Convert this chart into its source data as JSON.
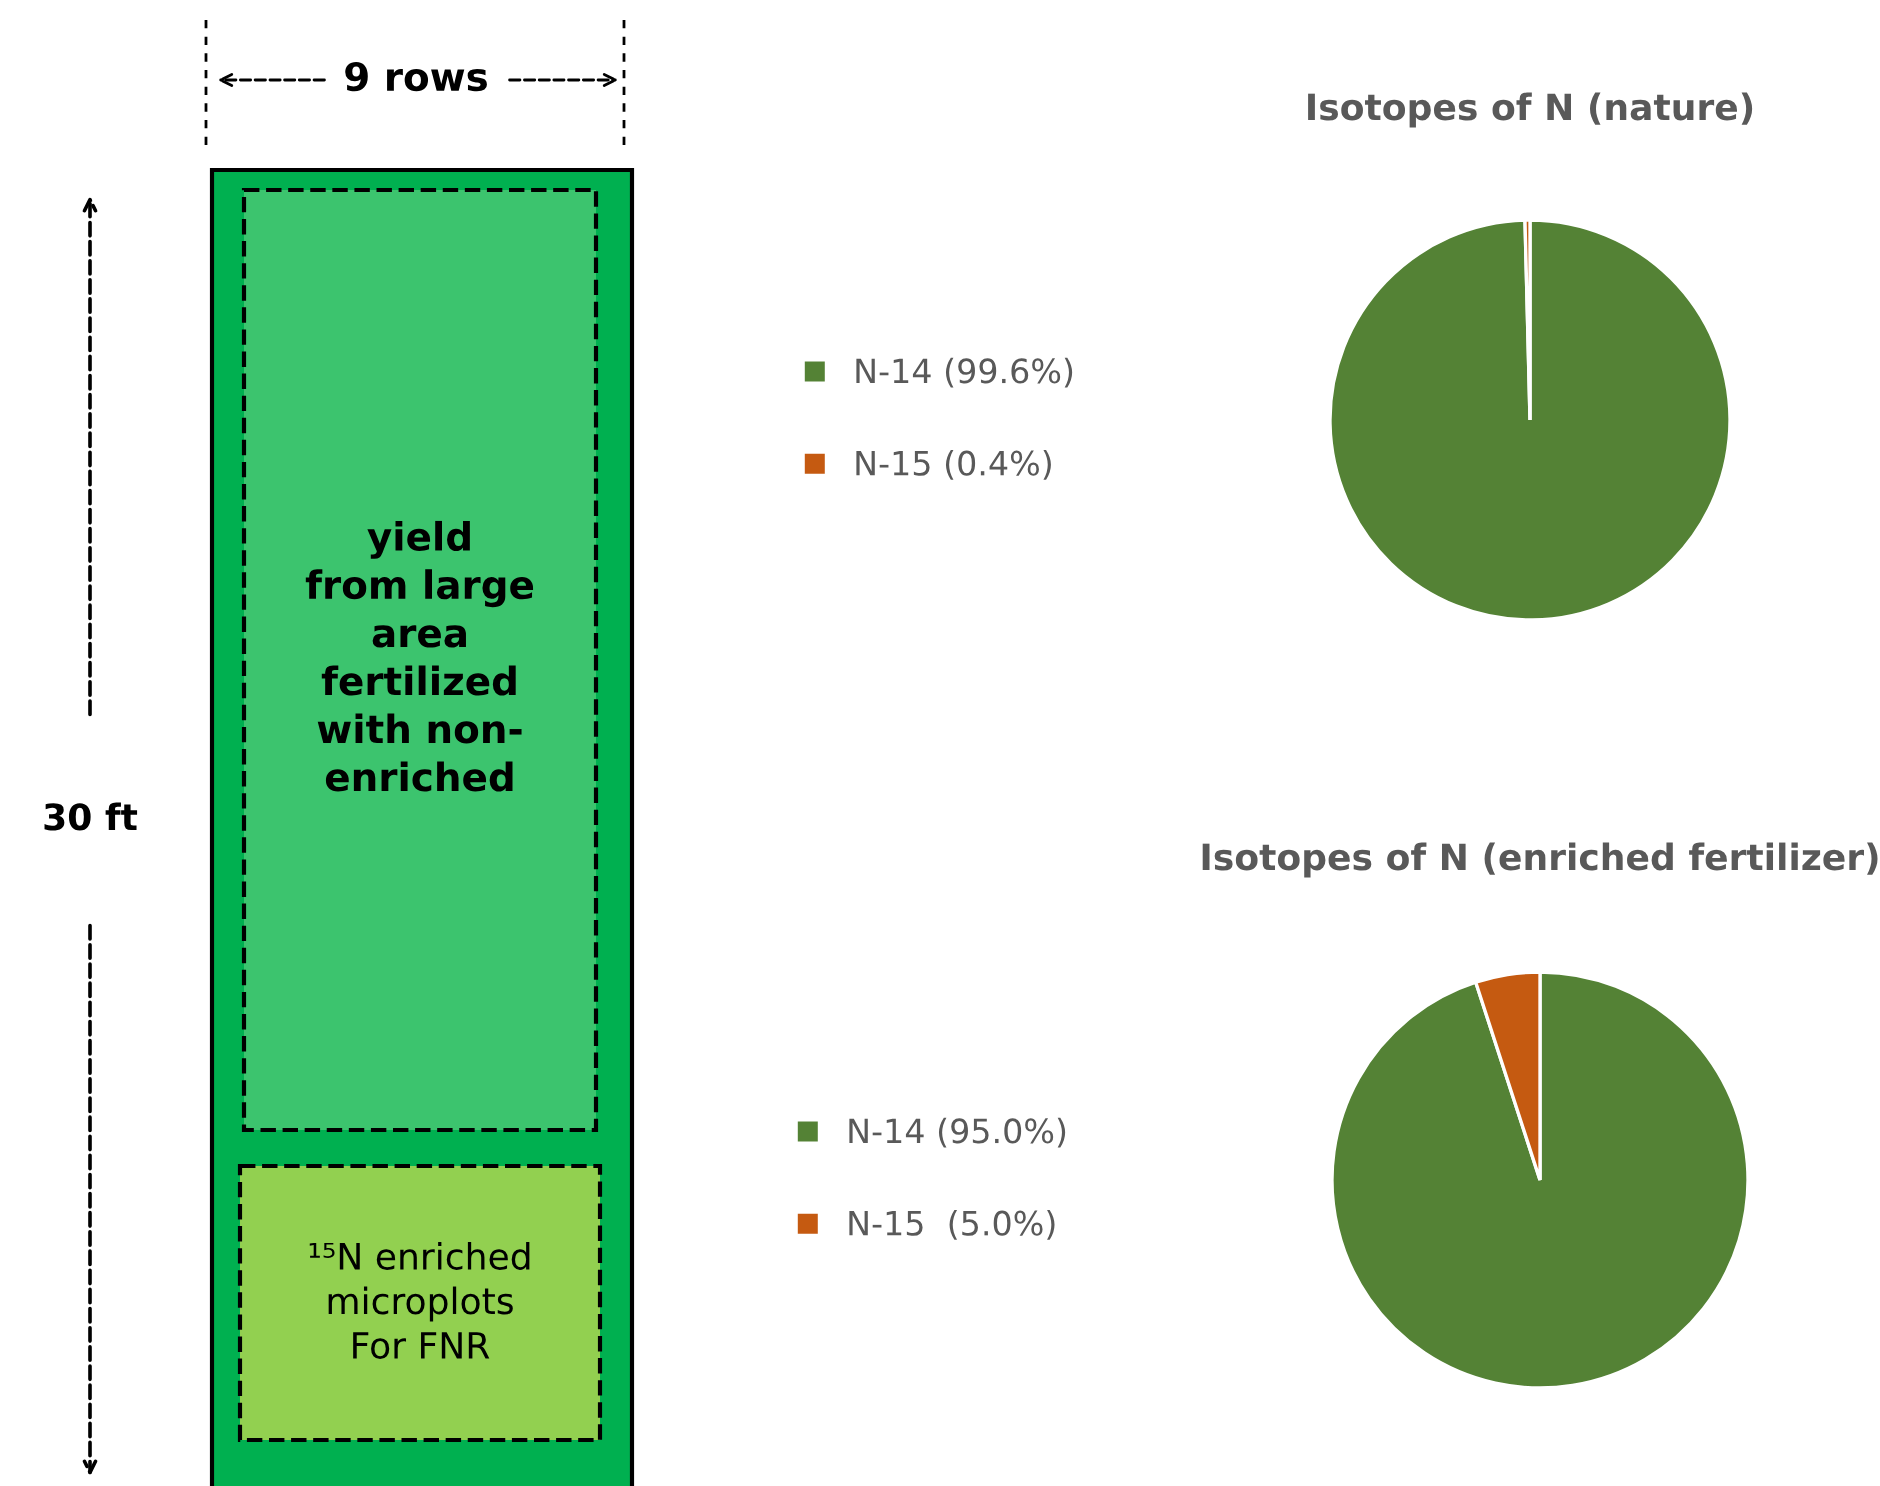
{
  "chart_data": [
    {
      "type": "other",
      "annotations": [
        "9 rows",
        "30 ft",
        "yield\nfrom large\narea\nfertilized\nwith non-\nenriched",
        "¹⁵N enriched\nmicroplots\nFor FNR"
      ]
    },
    {
      "type": "pie",
      "title": "Isotopes of N (nature)",
      "categories": [
        "N-14 (99.6%)",
        "N-15 (0.4%)"
      ],
      "values": [
        99.6,
        0.4
      ],
      "colors": [
        "#548235",
        "#c55a11"
      ],
      "legend": "left"
    },
    {
      "type": "pie",
      "title": "Isotopes of N (enriched fertilizer)",
      "categories": [
        "N-14 (95.0%)",
        "N-15  (5.0%)"
      ],
      "values": [
        95.0,
        5.0
      ],
      "colors": [
        "#548235",
        "#c55a11"
      ],
      "legend": "left"
    }
  ]
}
